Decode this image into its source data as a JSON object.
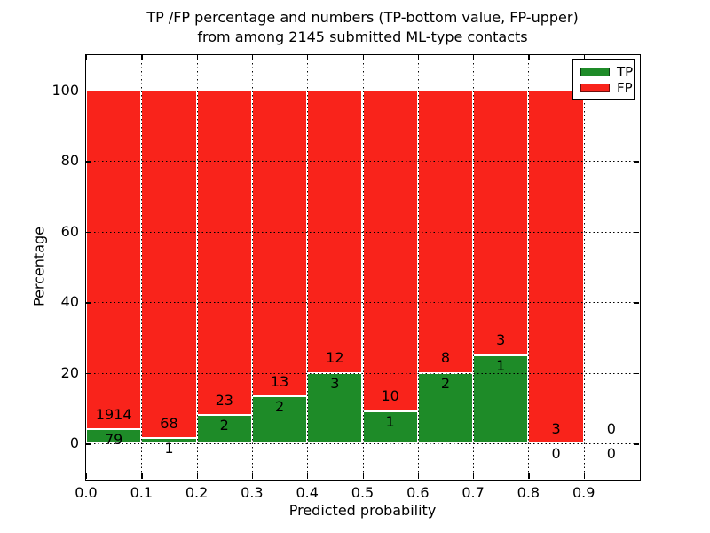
{
  "figure": {
    "title_line1": "TP /FP percentage and numbers (TP-bottom value, FP-upper)",
    "title_line2": "from among 2145 submitted ML-type contacts",
    "xlabel": "Predicted probability",
    "ylabel": "Percentage"
  },
  "legend": {
    "entries": [
      {
        "label": "TP",
        "color": "#1e8b28"
      },
      {
        "label": "FP",
        "color": "#f9231b"
      }
    ]
  },
  "colors": {
    "tp_green": "#1e8b28",
    "fp_red": "#f9231b",
    "grid": "#000000",
    "background": "#ffffff"
  },
  "chart_data": {
    "type": "bar",
    "stacked": true,
    "title": "TP /FP percentage and numbers (TP-bottom value, FP-upper) from among 2145 submitted ML-type contacts",
    "xlabel": "Predicted probability",
    "ylabel": "Percentage",
    "total_contacts": 2145,
    "xlim": [
      0.0,
      1.0
    ],
    "ylim": [
      -10,
      110
    ],
    "x_tick_labels": [
      "0.0",
      "0.1",
      "0.2",
      "0.3",
      "0.4",
      "0.5",
      "0.6",
      "0.7",
      "0.8",
      "0.9"
    ],
    "y_tick_values": [
      0,
      20,
      40,
      60,
      80,
      100
    ],
    "grid": true,
    "grid_style": "dotted",
    "legend_position": "upper right",
    "bin_width": 0.1,
    "bin_starts": [
      0.0,
      0.1,
      0.2,
      0.3,
      0.4,
      0.5,
      0.6,
      0.7,
      0.8,
      0.9
    ],
    "series": [
      {
        "name": "TP",
        "color": "#1e8b28",
        "counts": [
          79,
          1,
          2,
          2,
          3,
          1,
          2,
          1,
          0,
          0
        ]
      },
      {
        "name": "FP",
        "color": "#f9231b",
        "counts": [
          1914,
          68,
          23,
          13,
          12,
          10,
          8,
          3,
          3,
          0
        ]
      }
    ],
    "tp_percent_of_bin": [
      3.96,
      1.45,
      8.0,
      13.33,
      20.0,
      9.09,
      20.0,
      25.0,
      0.0,
      null
    ],
    "stack_total_percent": 100
  }
}
